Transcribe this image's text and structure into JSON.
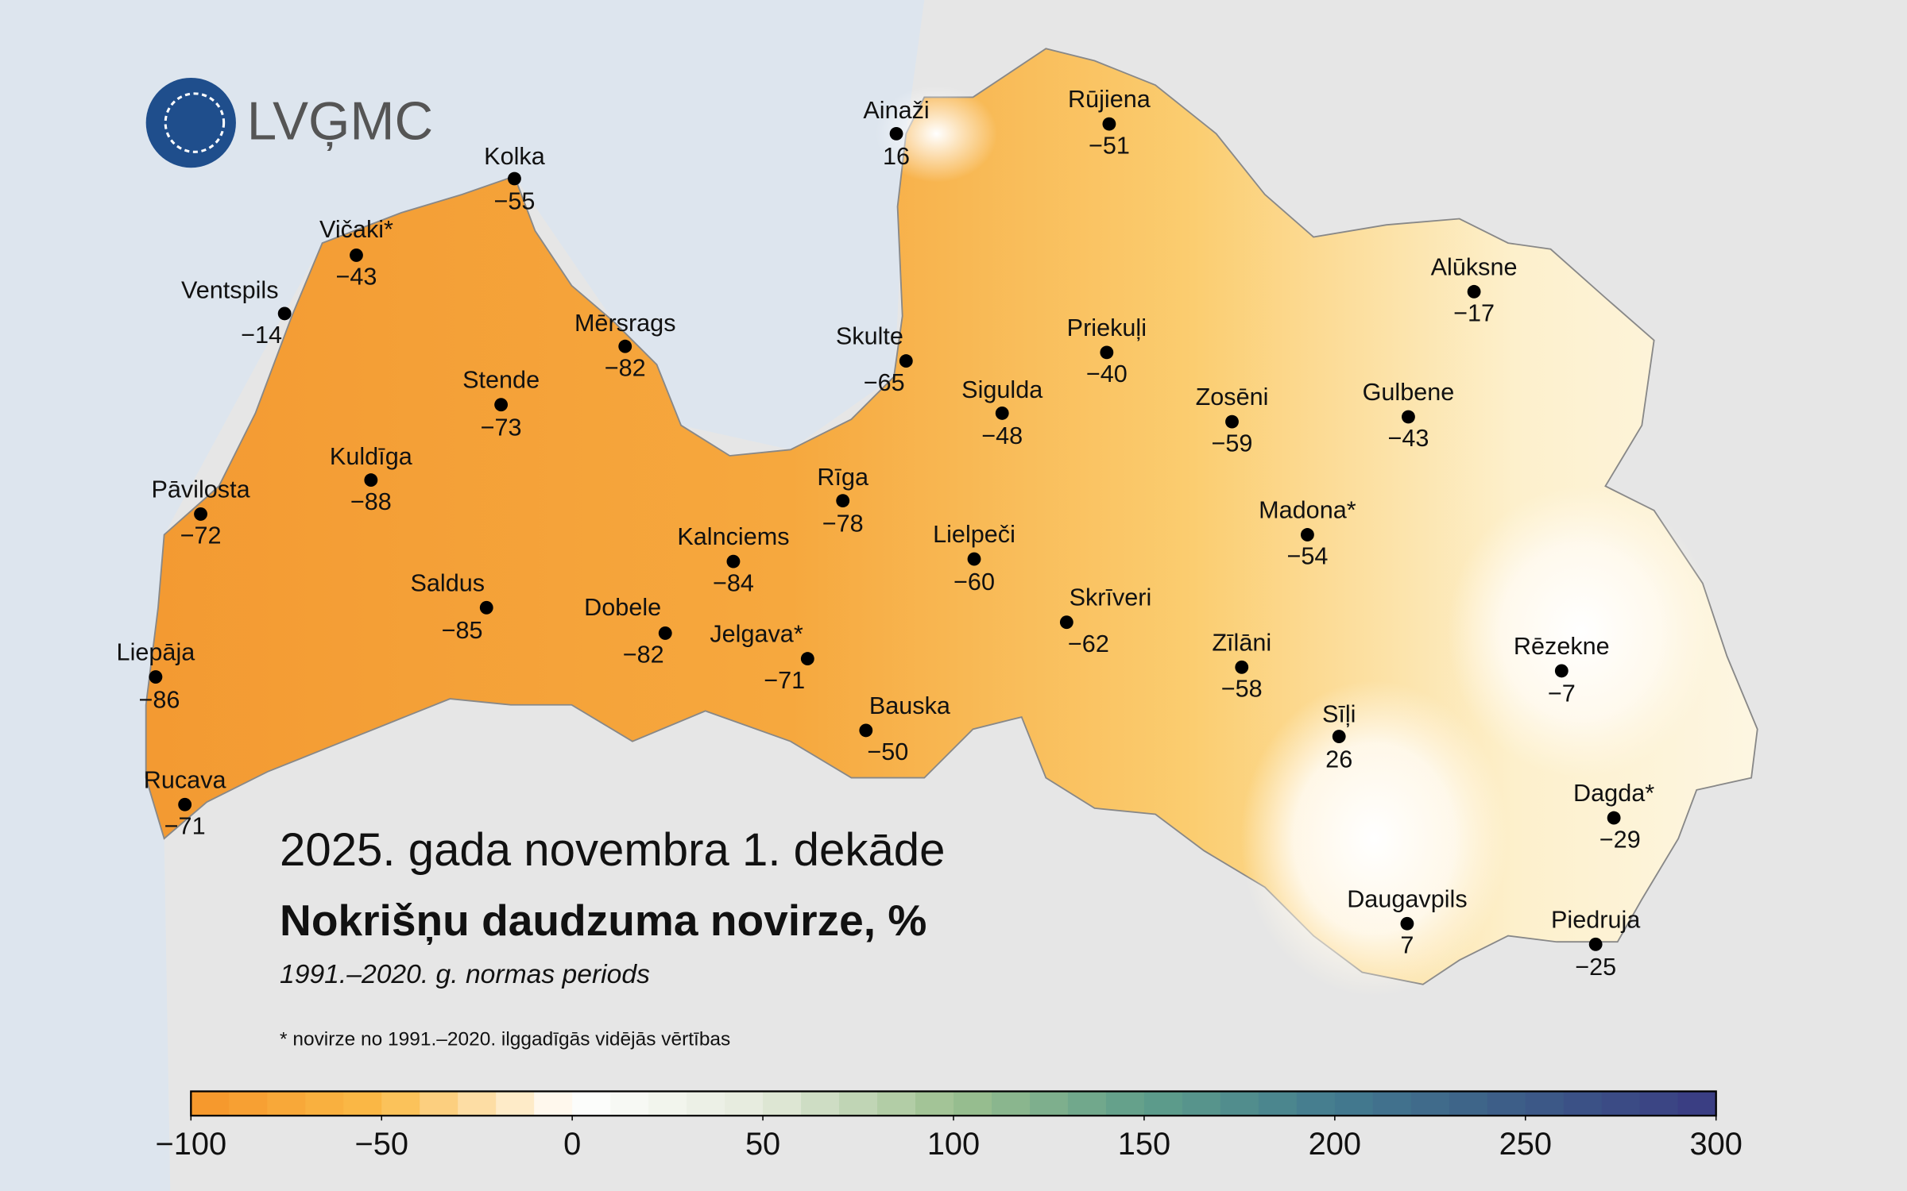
{
  "logo": {
    "text": "LVĢMC"
  },
  "title": {
    "line1": "2025. gada novembra 1. dekāde",
    "line2": "Nokrišņu daudzuma novirze, %",
    "subtitle": "1991.–2020. g. normas periods"
  },
  "footnote": "* novirze no 1991.–2020. ilggadīgās vidējās vērtības",
  "stations": [
    {
      "name": "Kolka",
      "value": "−55"
    },
    {
      "name": "Vičaki*",
      "value": "−43"
    },
    {
      "name": "Ventspils",
      "value": "−14"
    },
    {
      "name": "Mērsrags",
      "value": "−82"
    },
    {
      "name": "Stende",
      "value": "−73"
    },
    {
      "name": "Kuldīga",
      "value": "−88"
    },
    {
      "name": "Pāvilosta",
      "value": "−72"
    },
    {
      "name": "Saldus",
      "value": "−85"
    },
    {
      "name": "Liepāja",
      "value": "−86"
    },
    {
      "name": "Rucava",
      "value": "−71"
    },
    {
      "name": "Ainaži",
      "value": "16"
    },
    {
      "name": "Rūjiena",
      "value": "−51"
    },
    {
      "name": "Skulte",
      "value": "−65"
    },
    {
      "name": "Alūksne",
      "value": "−17"
    },
    {
      "name": "Priekuļi",
      "value": "−40"
    },
    {
      "name": "Sigulda",
      "value": "−48"
    },
    {
      "name": "Zosēni",
      "value": "−59"
    },
    {
      "name": "Gulbene",
      "value": "−43"
    },
    {
      "name": "Rīga",
      "value": "−78"
    },
    {
      "name": "Madona*",
      "value": "−54"
    },
    {
      "name": "Kalnciems",
      "value": "−84"
    },
    {
      "name": "Lielpeči",
      "value": "−60"
    },
    {
      "name": "Dobele",
      "value": "−82"
    },
    {
      "name": "Jelgava*",
      "value": "−71"
    },
    {
      "name": "Skrīveri",
      "value": "−62"
    },
    {
      "name": "Zīlāni",
      "value": "−58"
    },
    {
      "name": "Rēzekne",
      "value": "−7"
    },
    {
      "name": "Bauska",
      "value": "−50"
    },
    {
      "name": "Sīļi",
      "value": "26"
    },
    {
      "name": "Dagda*",
      "value": "−29"
    },
    {
      "name": "Daugavpils",
      "value": "7"
    },
    {
      "name": "Piedruja",
      "value": "−25"
    }
  ],
  "colorbar": {
    "range": [
      -100,
      300
    ],
    "ticks": [
      {
        "value": -100,
        "label": "−100"
      },
      {
        "value": -50,
        "label": "−50"
      },
      0,
      50,
      100,
      150,
      200,
      250,
      300
    ],
    "colors": [
      "#f5952a",
      "#fbbb48",
      "#ffffff",
      "#e4eadb",
      "#9cc08f",
      "#5f9e8a",
      "#437b8f",
      "#3c5b87",
      "#3a3b82"
    ]
  }
}
